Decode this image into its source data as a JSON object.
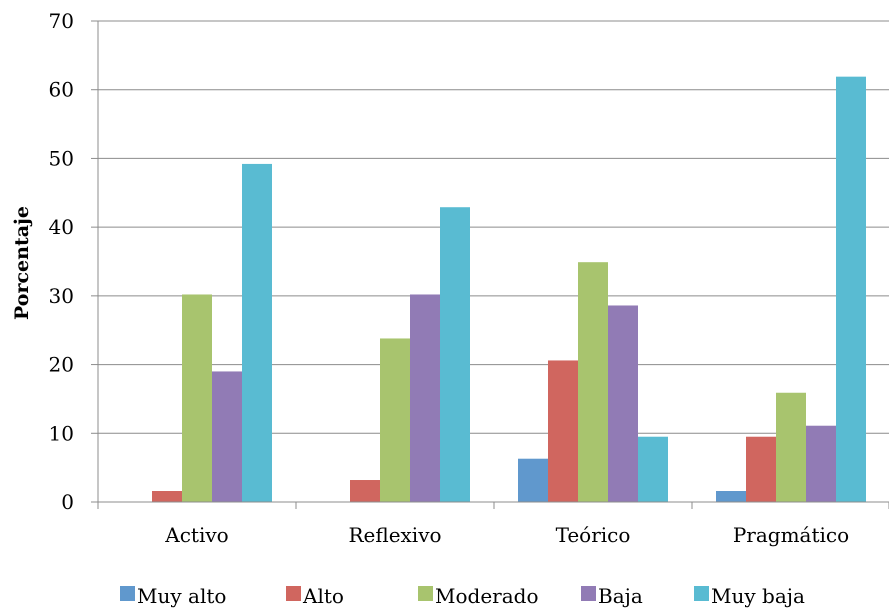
{
  "chart_data": {
    "type": "bar",
    "title": "",
    "xlabel": "",
    "ylabel": "Porcentaje",
    "ylim": [
      0,
      70
    ],
    "yticks": [
      0,
      10,
      20,
      30,
      40,
      50,
      60,
      70
    ],
    "grid": true,
    "legend_position": "bottom",
    "categories": [
      "Activo",
      "Reflexivo",
      "Teórico",
      "Pragmático"
    ],
    "series": [
      {
        "name": "Muy alto",
        "color": "#6098cd",
        "values": [
          0,
          0,
          6.3,
          1.6
        ]
      },
      {
        "name": "Alto",
        "color": "#d0665f",
        "values": [
          1.6,
          3.2,
          20.6,
          9.5
        ]
      },
      {
        "name": "Moderado",
        "color": "#a8c46e",
        "values": [
          30.2,
          23.8,
          34.9,
          15.9
        ]
      },
      {
        "name": "Baja",
        "color": "#917bb5",
        "values": [
          19.0,
          30.2,
          28.6,
          11.1
        ]
      },
      {
        "name": "Muy baja",
        "color": "#59bbd2",
        "values": [
          49.2,
          42.9,
          9.5,
          61.9
        ]
      }
    ]
  }
}
